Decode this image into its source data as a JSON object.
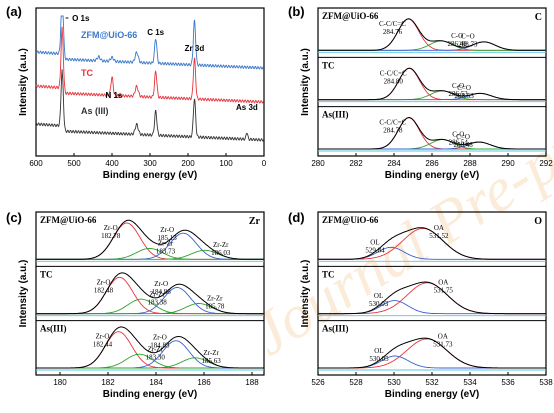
{
  "colors": {
    "frame": "#000000",
    "envelope": "#000000",
    "survey_series": [
      "#3a78c9",
      "#e8333a",
      "#333333"
    ],
    "comp_red": "#e8333a",
    "comp_blue": "#3a5fcd",
    "comp_green": "#2ca02c",
    "comp_orange": "#f5a623",
    "comp_cyan": "#3fb5d9",
    "comp_magenta": "#d43bd8",
    "base_cyan": "#55c8e0",
    "watermark": "#f4c58a"
  },
  "watermark_text": "Journal Pre-proof",
  "chart_data": [
    {
      "id": "a",
      "panel_label": "(a)",
      "type": "line",
      "xlabel": "Binding energy (eV)",
      "ylabel": "Intensity (a.u.)",
      "xlim": [
        600,
        0
      ],
      "reverse_x": true,
      "xticks": [
        "600",
        "500",
        "400",
        "300",
        "200",
        "100",
        "0"
      ],
      "series": [
        {
          "name": "ZFM@UiO-66",
          "offset": 2.0,
          "peaks": [
            {
              "x": 531,
              "h": 1.55,
              "w": 3
            },
            {
              "x": 400,
              "h": 0.1,
              "w": 4
            },
            {
              "x": 285,
              "h": 0.62,
              "w": 3
            },
            {
              "x": 183,
              "h": 1.1,
              "w": 3
            },
            {
              "x": 335,
              "h": 0.25,
              "w": 4
            },
            {
              "x": 435,
              "h": 0.1,
              "w": 4
            }
          ]
        },
        {
          "name": "TC",
          "offset": 1.15,
          "peaks": [
            {
              "x": 531,
              "h": 1.5,
              "w": 3
            },
            {
              "x": 400,
              "h": 0.45,
              "w": 3
            },
            {
              "x": 285,
              "h": 0.65,
              "w": 3
            },
            {
              "x": 183,
              "h": 1.0,
              "w": 3
            },
            {
              "x": 335,
              "h": 0.25,
              "w": 4
            }
          ]
        },
        {
          "name": "As (III)",
          "offset": 0.2,
          "peaks": [
            {
              "x": 531,
              "h": 1.4,
              "w": 3
            },
            {
              "x": 285,
              "h": 0.6,
              "w": 3
            },
            {
              "x": 183,
              "h": 0.95,
              "w": 3
            },
            {
              "x": 335,
              "h": 0.25,
              "w": 4
            },
            {
              "x": 45,
              "h": 0.18,
              "w": 2
            }
          ]
        }
      ],
      "annotations": [
        "O 1s",
        "C 1s",
        "Zr 3d",
        "N 1s",
        "As 3d"
      ]
    },
    {
      "id": "b",
      "panel_label": "(b)",
      "element": "C",
      "type": "line",
      "xlabel": "Binding energy (eV)",
      "ylabel": "Intensity (a.u.)",
      "xlim": [
        280,
        292
      ],
      "xticks": [
        "280",
        "282",
        "284",
        "286",
        "288",
        "290",
        "292"
      ],
      "subplots": [
        {
          "sample": "ZFM@UiO-66",
          "components": [
            {
              "name": "C-C/C=C",
              "x": 284.76,
              "h": 1.0,
              "w": 0.55,
              "color": "comp_red",
              "label": "C-C/C=C\n284.76"
            },
            {
              "name": "C-O",
              "x": 286.48,
              "h": 0.3,
              "w": 0.6,
              "color": "comp_green",
              "label": "C-O\n286.48"
            },
            {
              "name": "C=O",
              "x": 288.73,
              "h": 0.27,
              "w": 0.6,
              "color": "comp_blue",
              "label": "C=O\n288.73"
            }
          ]
        },
        {
          "sample": "TC",
          "components": [
            {
              "name": "C-C/C=C",
              "x": 284.8,
              "h": 1.0,
              "w": 0.55,
              "color": "comp_red",
              "label": "C-C/C=C\n284.80"
            },
            {
              "name": "C-O",
              "x": 286.53,
              "h": 0.28,
              "w": 0.6,
              "color": "comp_green",
              "label": "C-O\n286.53"
            },
            {
              "name": "C=O",
              "x": 288.53,
              "h": 0.2,
              "w": 0.6,
              "color": "comp_blue",
              "label": "C=O\n288.53"
            }
          ]
        },
        {
          "sample": "As(III)",
          "components": [
            {
              "name": "C-C/C=C",
              "x": 284.78,
              "h": 1.0,
              "w": 0.55,
              "color": "comp_red",
              "label": "C-C/C=C\n284.78"
            },
            {
              "name": "C-O",
              "x": 286.54,
              "h": 0.3,
              "w": 0.6,
              "color": "comp_green",
              "label": "C-O\n286.54"
            },
            {
              "name": "C=O",
              "x": 288.48,
              "h": 0.22,
              "w": 0.6,
              "color": "comp_blue",
              "label": "C=O\n288.48"
            }
          ]
        }
      ]
    },
    {
      "id": "c",
      "panel_label": "(c)",
      "element": "Zr",
      "type": "line",
      "xlabel": "Binding energy (eV)",
      "ylabel": "Intensity (a.u.)",
      "xlim": [
        179,
        188.5
      ],
      "xticks": [
        "180",
        "182",
        "184",
        "186",
        "188"
      ],
      "subplots": [
        {
          "sample": "ZFM@UiO-66",
          "components": [
            {
              "name": "Zr-O",
              "x": 182.78,
              "h": 1.0,
              "w": 0.55,
              "color": "comp_red",
              "label": "Zr-O\n182.78"
            },
            {
              "name": "Zr-Zr",
              "x": 183.73,
              "h": 0.3,
              "w": 0.55,
              "color": "comp_green",
              "label": "Zr-Zr\n183.73"
            },
            {
              "name": "Zr-O",
              "x": 185.13,
              "h": 0.72,
              "w": 0.55,
              "color": "comp_blue",
              "label": "Zr-O\n185.13"
            },
            {
              "name": "Zr-Zr",
              "x": 186.03,
              "h": 0.25,
              "w": 0.55,
              "color": "comp_green",
              "label": "Zr-Zr\n186.03"
            }
          ]
        },
        {
          "sample": "TC",
          "components": [
            {
              "name": "Zr-O",
              "x": 182.48,
              "h": 1.0,
              "w": 0.55,
              "color": "comp_red",
              "label": "Zr-O\n182.48"
            },
            {
              "name": "Zr-Zr",
              "x": 183.38,
              "h": 0.4,
              "w": 0.55,
              "color": "comp_green",
              "label": "Zr-Zr\n183.38"
            },
            {
              "name": "Zr-O",
              "x": 184.88,
              "h": 0.72,
              "w": 0.55,
              "color": "comp_blue",
              "label": "Zr-O\n184.88"
            },
            {
              "name": "Zr-Zr",
              "x": 185.78,
              "h": 0.28,
              "w": 0.55,
              "color": "comp_green",
              "label": "Zr-Zr\n185.78"
            }
          ]
        },
        {
          "sample": "As(III)",
          "components": [
            {
              "name": "Zr-O",
              "x": 182.44,
              "h": 1.0,
              "w": 0.55,
              "color": "comp_red",
              "label": "Zr-O\n182.44"
            },
            {
              "name": "Zr-Zr",
              "x": 183.3,
              "h": 0.38,
              "w": 0.55,
              "color": "comp_green",
              "label": "Zr-Zr\n183.30"
            },
            {
              "name": "Zr-O",
              "x": 184.83,
              "h": 0.75,
              "w": 0.55,
              "color": "comp_blue",
              "label": "Zr-O\n184.83"
            },
            {
              "name": "Zr-Zr",
              "x": 185.63,
              "h": 0.28,
              "w": 0.55,
              "color": "comp_green",
              "label": "Zr-Zr\n185.63"
            }
          ]
        }
      ]
    },
    {
      "id": "d",
      "panel_label": "(d)",
      "element": "O",
      "type": "line",
      "xlabel": "Binding energy (eV)",
      "ylabel": "Intensity (a.u.)",
      "xlim": [
        526,
        538
      ],
      "xticks": [
        "526",
        "528",
        "530",
        "532",
        "534",
        "536",
        "538"
      ],
      "subplots": [
        {
          "sample": "ZFM@UiO-66",
          "components": [
            {
              "name": "OL",
              "x": 529.84,
              "h": 0.33,
              "w": 0.7,
              "color": "comp_blue",
              "label": "OL\n529.84"
            },
            {
              "name": "OA",
              "x": 531.52,
              "h": 0.85,
              "w": 1.05,
              "color": "comp_red",
              "label": "OA\n531.52"
            }
          ]
        },
        {
          "sample": "TC",
          "components": [
            {
              "name": "OL",
              "x": 530.03,
              "h": 0.36,
              "w": 0.7,
              "color": "comp_blue",
              "label": "OL\n530.03"
            },
            {
              "name": "OA",
              "x": 531.75,
              "h": 0.85,
              "w": 1.05,
              "color": "comp_red",
              "label": "OA\n531.75"
            }
          ]
        },
        {
          "sample": "As(III)",
          "components": [
            {
              "name": "OL",
              "x": 530.05,
              "h": 0.33,
              "w": 0.7,
              "color": "comp_blue",
              "label": "OL\n530.05"
            },
            {
              "name": "OA",
              "x": 531.73,
              "h": 0.8,
              "w": 1.05,
              "color": "comp_red",
              "label": "OA\n531.73"
            }
          ]
        }
      ]
    }
  ]
}
